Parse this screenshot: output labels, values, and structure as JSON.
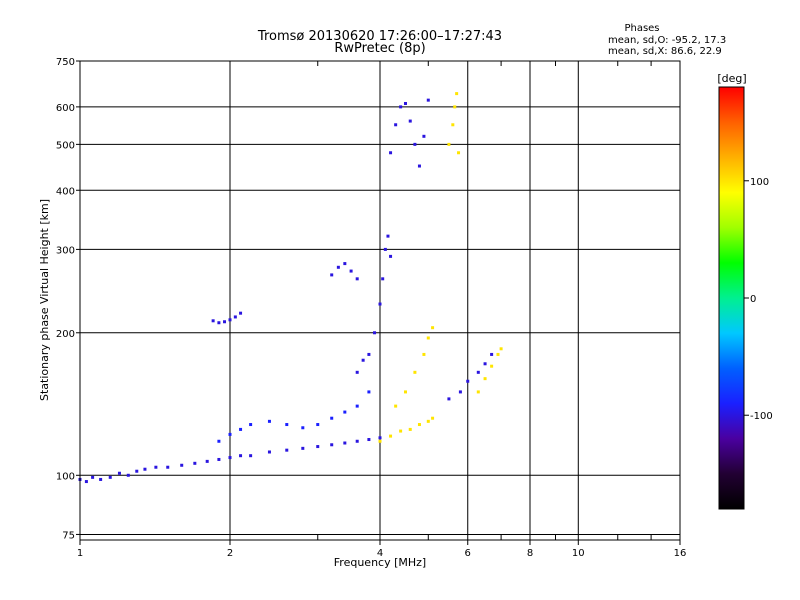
{
  "chart_data": {
    "type": "scatter",
    "title": "Tromsø 20130620 17:26:00–17:27:43",
    "subtitle": "RwPretec (8p)",
    "info": {
      "heading": "Phases",
      "line1": "mean, sd,O: -95.2, 17.3",
      "line2": "mean, sd,X:  86.6, 22.9"
    },
    "xlabel": "Frequency [MHz]",
    "ylabel": "Stationary phase Virtual Height [km]",
    "x_scale": "log",
    "y_scale": "log",
    "xlim": [
      1,
      16
    ],
    "ylim": [
      73,
      750
    ],
    "x_ticks": [
      1,
      2,
      4,
      6,
      8,
      10,
      16
    ],
    "x_tick_labels": [
      "1",
      "2",
      "4",
      "6",
      "8",
      "10",
      "16"
    ],
    "x_minor_ticks": [
      3,
      5,
      7,
      9,
      12,
      14
    ],
    "y_ticks": [
      75,
      100,
      200,
      300,
      400,
      500,
      600,
      750
    ],
    "y_tick_labels": [
      "75",
      "100",
      "200",
      "300",
      "400",
      "500",
      "600",
      "750"
    ],
    "grid": true,
    "colorbar": {
      "label": "[deg]",
      "range": [
        -180,
        180
      ],
      "ticks": [
        100,
        0,
        -100
      ],
      "tick_labels": [
        "100",
        "0",
        "-100"
      ],
      "colormap": [
        "#000000",
        "#220033",
        "#4a00a0",
        "#1a20ff",
        "#0060ff",
        "#00c8ff",
        "#00f090",
        "#00ff00",
        "#a0ff00",
        "#ffff00",
        "#ffb000",
        "#ff6000",
        "#ff0000"
      ]
    },
    "series": [
      {
        "x": [
          1.0,
          1.03,
          1.06,
          1.1,
          1.15,
          1.2,
          1.25,
          1.3,
          1.35,
          1.42,
          1.5,
          1.6,
          1.7,
          1.8,
          1.9,
          2.0,
          2.1,
          2.2,
          2.4,
          2.6,
          2.8,
          3.0,
          3.2,
          3.4,
          3.6,
          3.8,
          4.0
        ],
        "y": [
          98,
          97,
          99,
          98,
          99,
          101,
          100,
          102,
          103,
          104,
          104,
          105,
          106,
          107,
          108,
          109,
          110,
          110,
          112,
          113,
          114,
          115,
          116,
          117,
          118,
          119,
          120
        ],
        "phase": -100
      },
      {
        "x": [
          1.9,
          2.0,
          2.1,
          2.2,
          2.4,
          2.6,
          2.8,
          3.0,
          3.2,
          3.4,
          3.6,
          3.8
        ],
        "y": [
          118,
          122,
          125,
          128,
          130,
          128,
          126,
          128,
          132,
          136,
          140,
          150
        ],
        "phase": -90
      },
      {
        "x": [
          1.85,
          1.9,
          1.95,
          2.0,
          2.05,
          2.1
        ],
        "y": [
          212,
          210,
          211,
          213,
          216,
          220
        ],
        "phase": -100
      },
      {
        "x": [
          3.2,
          3.3,
          3.4,
          3.5,
          3.6
        ],
        "y": [
          265,
          275,
          280,
          270,
          260
        ],
        "phase": -100
      },
      {
        "x": [
          3.6,
          3.7,
          3.8,
          3.9,
          4.0,
          4.05,
          4.1,
          4.15,
          4.2
        ],
        "y": [
          165,
          175,
          180,
          200,
          230,
          260,
          300,
          320,
          290
        ],
        "phase": -100
      },
      {
        "x": [
          4.2,
          4.3,
          4.4,
          4.5,
          4.6,
          4.7,
          4.8,
          4.9,
          5.0
        ],
        "y": [
          480,
          550,
          600,
          610,
          560,
          500,
          450,
          520,
          620
        ],
        "phase": -100
      },
      {
        "x": [
          5.5,
          5.6,
          5.65,
          5.7,
          5.75
        ],
        "y": [
          500,
          550,
          600,
          640,
          480
        ],
        "phase": 100
      },
      {
        "x": [
          4.0,
          4.2,
          4.4,
          4.6,
          4.8,
          5.0,
          5.1
        ],
        "y": [
          118,
          121,
          124,
          125,
          128,
          130,
          132
        ],
        "phase": 100
      },
      {
        "x": [
          4.3,
          4.5,
          4.7,
          4.9,
          5.0,
          5.1
        ],
        "y": [
          140,
          150,
          165,
          180,
          195,
          205
        ],
        "phase": 100
      },
      {
        "x": [
          5.5,
          5.8,
          6.0,
          6.3,
          6.5,
          6.7
        ],
        "y": [
          145,
          150,
          158,
          165,
          172,
          180
        ],
        "phase": -100
      },
      {
        "x": [
          6.3,
          6.5,
          6.7,
          6.9,
          7.0
        ],
        "y": [
          150,
          160,
          170,
          180,
          185
        ],
        "phase": 100
      }
    ]
  }
}
